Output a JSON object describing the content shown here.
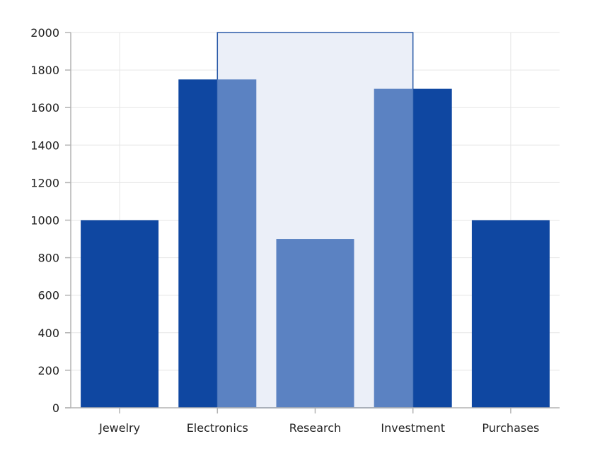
{
  "chart_data": {
    "type": "bar",
    "title": "",
    "xlabel": "",
    "ylabel": "",
    "categories": [
      "Jewelry",
      "Electronics",
      "Research",
      "Investment",
      "Purchases"
    ],
    "values": [
      1000,
      1750,
      900,
      1700,
      1000
    ],
    "ylim": [
      0,
      2000
    ],
    "y_ticks": [
      0,
      200,
      400,
      600,
      800,
      1000,
      1200,
      1400,
      1600,
      1800,
      2000
    ],
    "grid": true,
    "legend": "none",
    "selection": {
      "x_from": "Electronics",
      "x_to": "Investment",
      "y_from": 0,
      "y_to": 2000
    },
    "colors": {
      "bar": "#0f47a1",
      "bar_selected": "#5b82c2",
      "selection_fill": "#ebeff8",
      "selection_stroke": "#2b5aa8",
      "grid": "#e6e6e6",
      "axis": "#b3b3b3"
    }
  }
}
